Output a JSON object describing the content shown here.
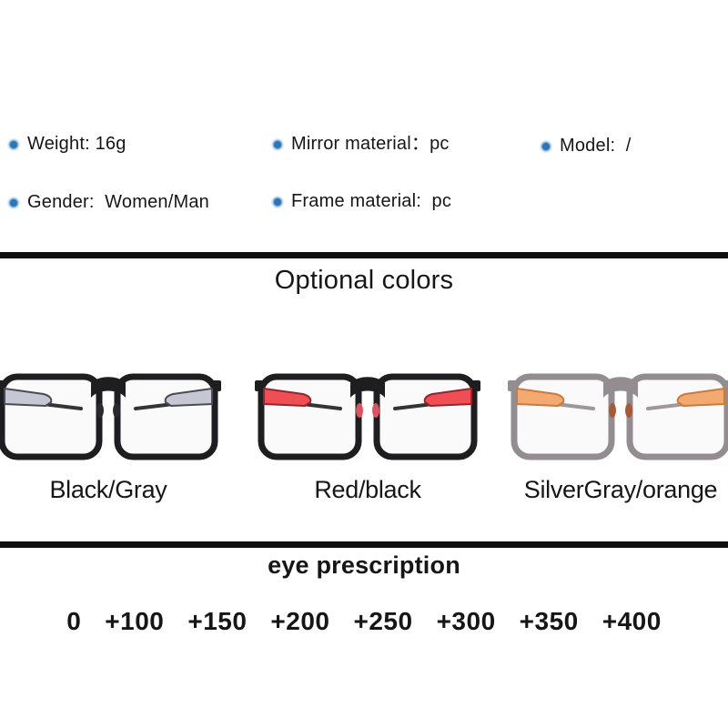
{
  "ui_colors": {
    "bullet": "#2e75b6",
    "divider": "#0f0f0f",
    "text": "#161616"
  },
  "header_specs": {
    "items": [
      {
        "label": "Weight: 16g"
      },
      {
        "label": "Mirror material：pc"
      },
      {
        "label": "Model:  /"
      },
      {
        "label": "Gender:  Women/Man"
      },
      {
        "label": "Frame material:  pc"
      }
    ]
  },
  "optional_colors": {
    "title": "Optional colors",
    "options": [
      {
        "label": "Black/Gray",
        "frame_color": "#1e1e20",
        "accent_color": "#c5c7d3",
        "accent_edge_color": "#4a4b56",
        "pad_color": "#2a2a2e"
      },
      {
        "label": "Red/black",
        "frame_color": "#1e1e20",
        "accent_color": "#ee4e54",
        "accent_edge_color": "#93262c",
        "pad_color": "#d9545e"
      },
      {
        "label": "SilverGray/orange",
        "frame_color": "#938d91",
        "accent_color": "#f3aa70",
        "accent_edge_color": "#c97a3c",
        "pad_color": "#a55a3a"
      }
    ]
  },
  "eye_prescription": {
    "title": "eye prescription",
    "values": [
      "0",
      "+100",
      "+150",
      "+200",
      "+250",
      "+300",
      "+350",
      "+400"
    ]
  }
}
